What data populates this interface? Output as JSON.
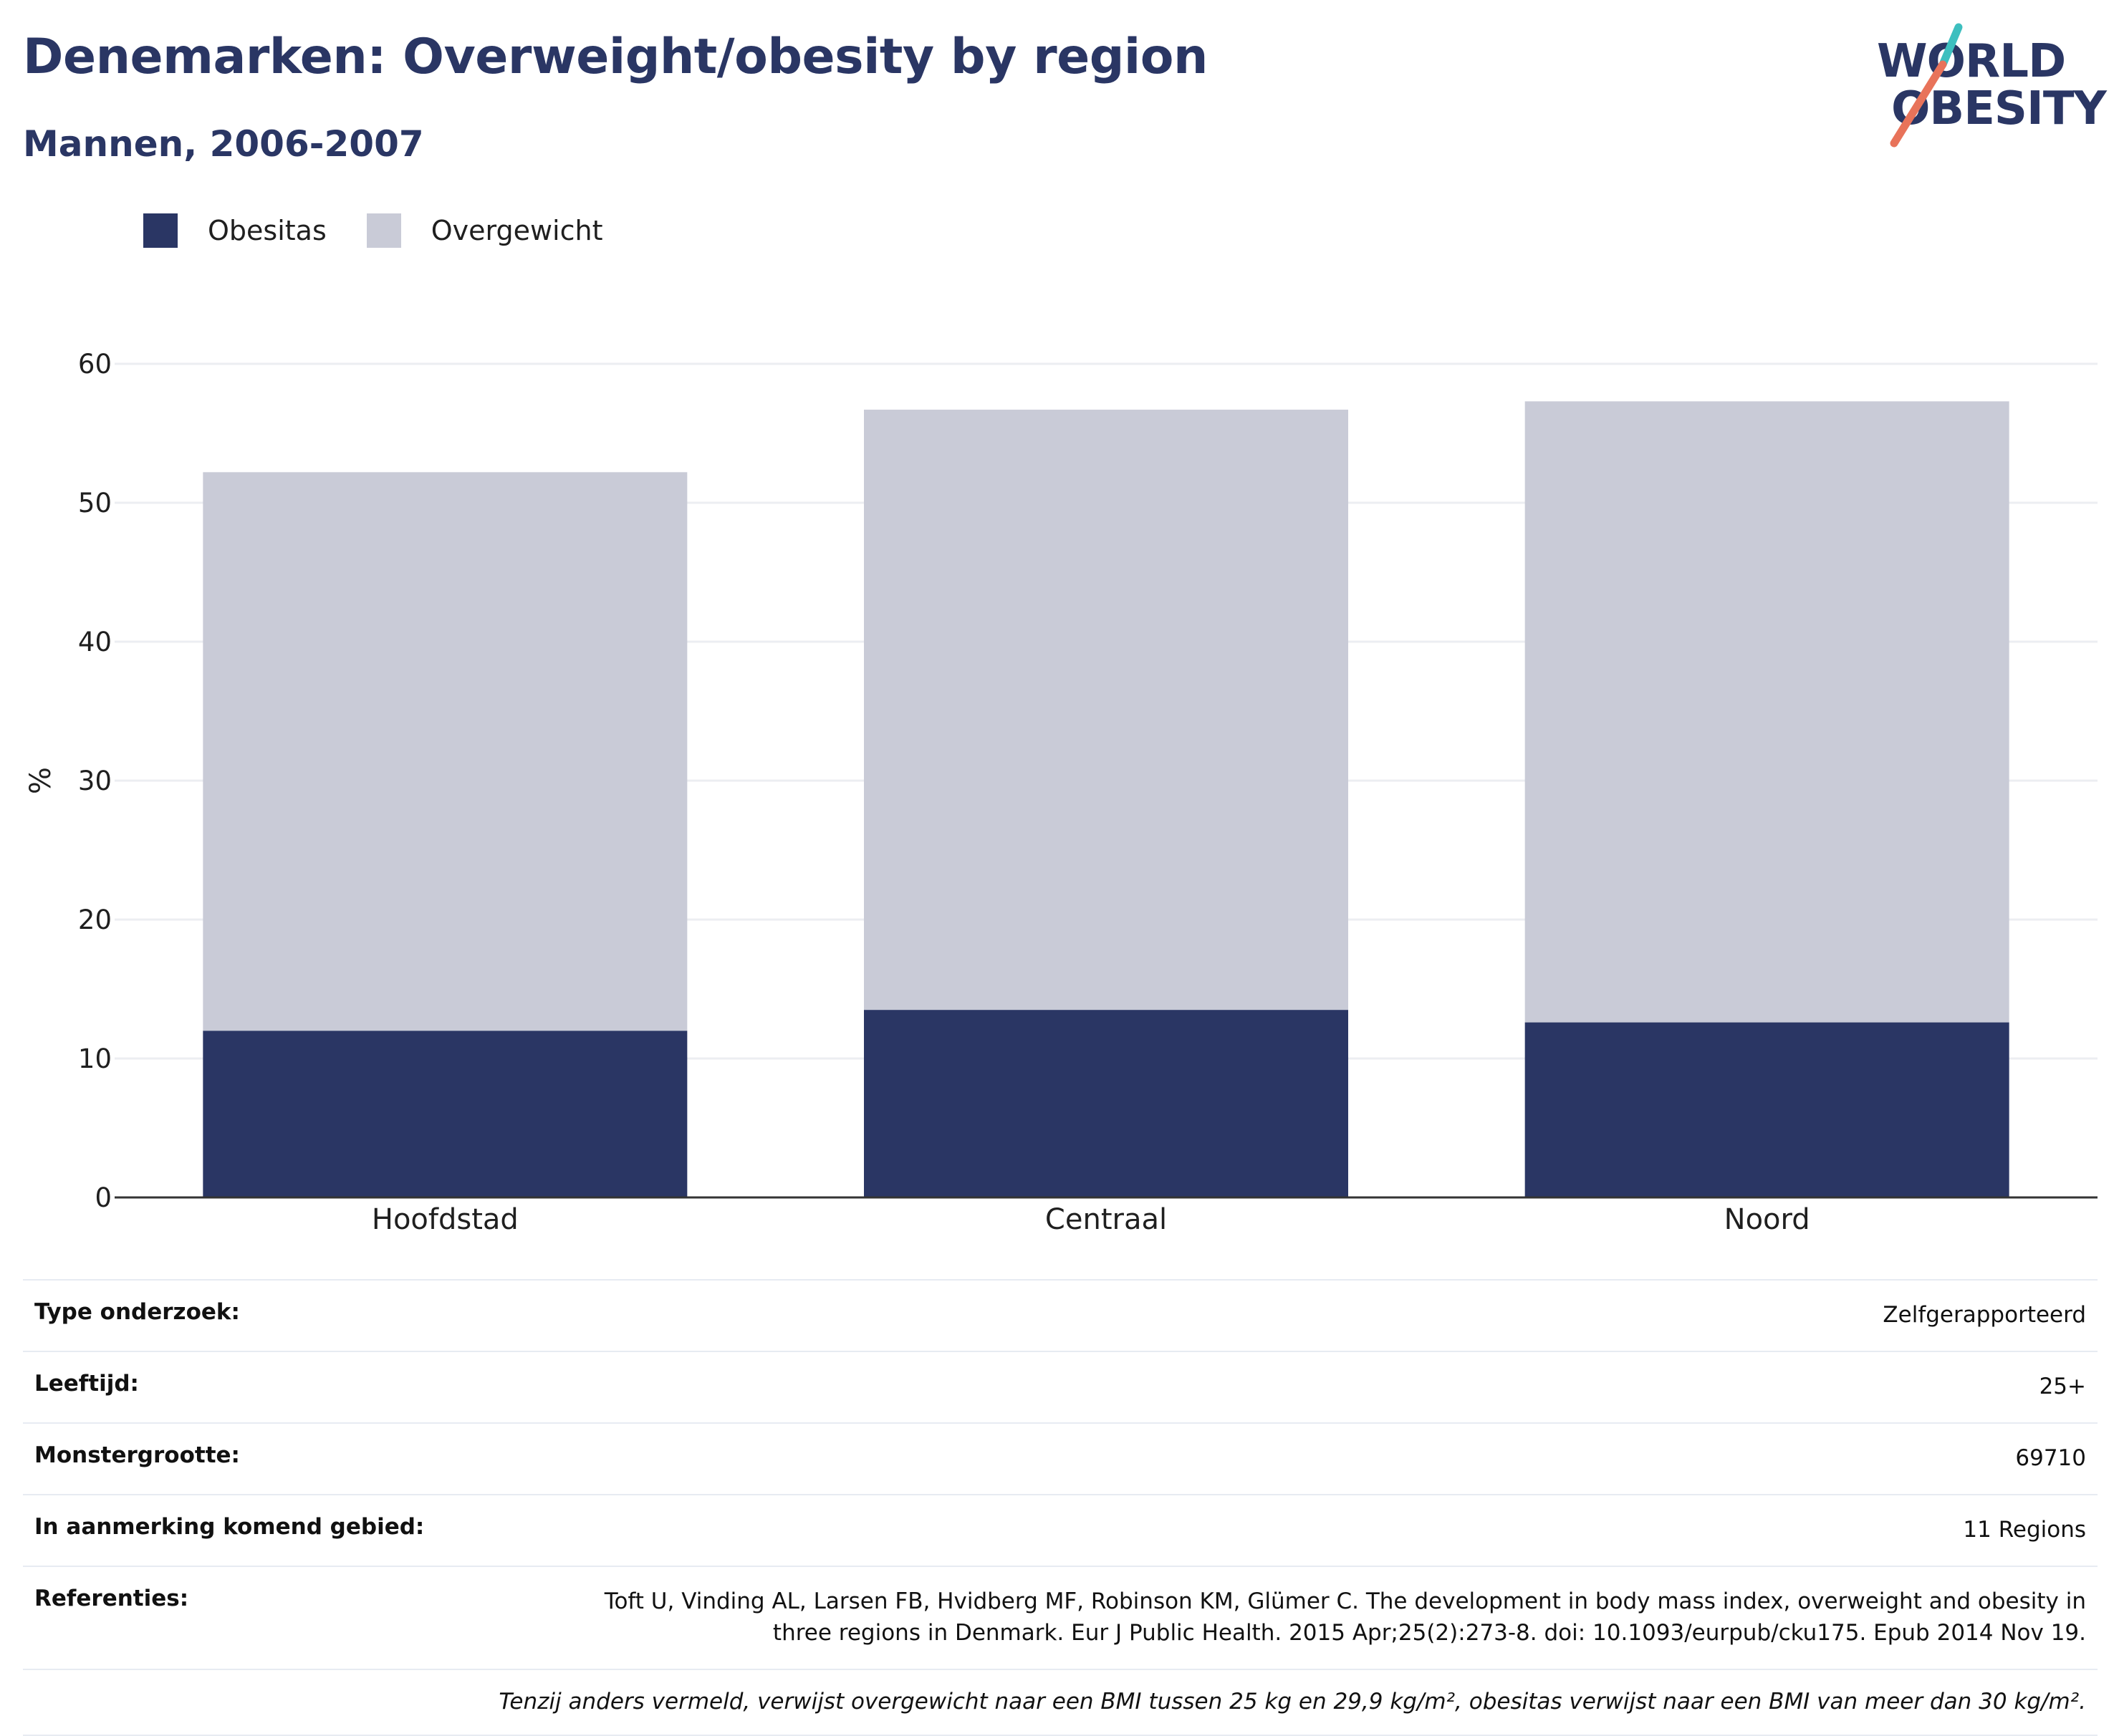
{
  "title": "Denemarken: Overweight/obesity by region",
  "subtitle": "Mannen, 2006-2007",
  "logo": {
    "line1": "WORLD",
    "line2": "OBESITY",
    "slash_colors": [
      "#3dbfbf",
      "#e8735a"
    ]
  },
  "colors": {
    "obesitas": "#2a3664",
    "overgewicht": "#c9cbd7",
    "title": "#2a3664",
    "gridline": "#eceef2",
    "axis": "#333333"
  },
  "legend": [
    {
      "label": "Obesitas",
      "color": "#2a3664"
    },
    {
      "label": "Overgewicht",
      "color": "#c9cbd7"
    }
  ],
  "chart_data": {
    "type": "bar",
    "stacked": true,
    "categories": [
      "Hoofdstad",
      "Centraal",
      "Noord"
    ],
    "series": [
      {
        "name": "Obesitas",
        "values": [
          12.0,
          13.5,
          12.6
        ]
      },
      {
        "name": "Overgewicht",
        "values": [
          40.2,
          43.2,
          44.7
        ]
      }
    ],
    "ylabel": "%",
    "ylim": [
      0,
      60
    ],
    "yticks": [
      0,
      10,
      20,
      30,
      40,
      50,
      60
    ],
    "grid": true,
    "legend_position": "top-left"
  },
  "info": [
    {
      "key": "Type onderzoek:",
      "value": "Zelfgerapporteerd"
    },
    {
      "key": "Leeftijd:",
      "value": "25+"
    },
    {
      "key": "Monstergrootte:",
      "value": "69710"
    },
    {
      "key": "In aanmerking komend gebied:",
      "value": "11 Regions"
    },
    {
      "key": "Referenties:",
      "value": "Toft U, Vinding AL, Larsen FB, Hvidberg MF, Robinson KM, Glümer C. The development in body mass index, overweight and obesity in three regions in Denmark. Eur J Public Health. 2015 Apr;25(2):273-8. doi: 10.1093/eurpub/cku175. Epub 2014 Nov 19."
    }
  ],
  "footnote": "Tenzij anders vermeld, verwijst overgewicht naar een BMI tussen 25 kg en 29,9 kg/m², obesitas verwijst naar een BMI van meer dan 30 kg/m²."
}
